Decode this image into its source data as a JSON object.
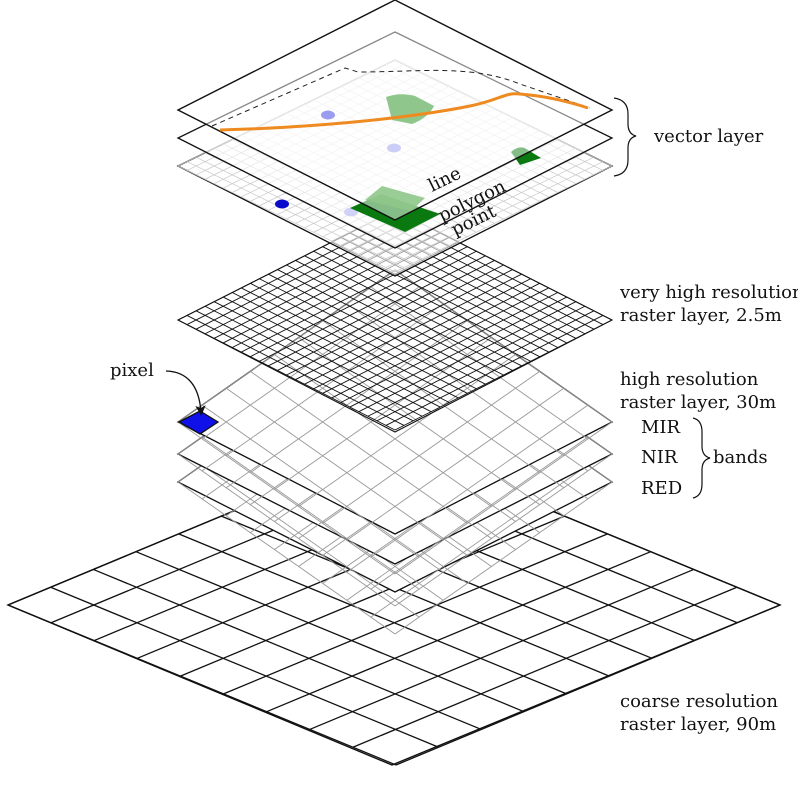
{
  "labels": {
    "vector_layer": "vector layer",
    "line": "line",
    "polygon": "polygon",
    "point": "point",
    "very_high_resolution": [
      "very high resolution",
      "raster layer, 2.5m"
    ],
    "high_resolution": [
      "high resolution",
      "raster layer, 30m"
    ],
    "coarse_resolution": [
      "coarse resolution",
      "raster layer, 90m"
    ],
    "pixel": "pixel",
    "bands": "bands",
    "band_names": [
      "MIR",
      "NIR",
      "RED"
    ]
  },
  "grids": {
    "very_high_resolution_cells": 24,
    "high_resolution_cells": 9,
    "coarse_resolution_cells": 9
  },
  "colors": {
    "line": "#ee8a1f",
    "polygon_light": "#8fc68b",
    "polygon_dark": "#0a7a10",
    "point_dark": "#0a0acc",
    "point_light": "#9a9cf0",
    "pixel": "#1010e8"
  }
}
